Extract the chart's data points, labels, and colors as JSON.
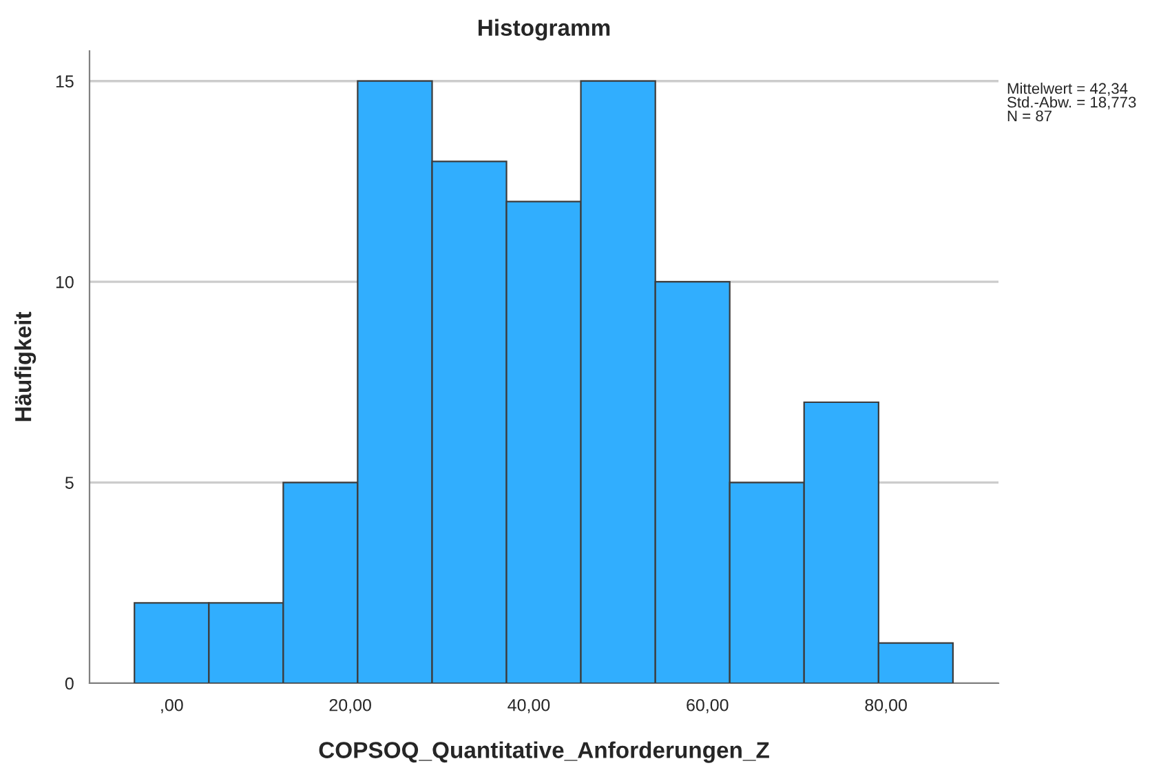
{
  "chart_data": {
    "type": "histogram",
    "title": "Histogramm",
    "xlabel": "COPSOQ_Quantitative_Anforderungen_Z",
    "ylabel": "Häufigkeit",
    "bins": [
      -4.17,
      4.17,
      12.5,
      20.83,
      29.17,
      37.5,
      45.83,
      54.17,
      62.5,
      70.83,
      79.17,
      87.5
    ],
    "values": [
      2,
      2,
      5,
      15,
      13,
      12,
      15,
      10,
      5,
      7,
      1
    ],
    "color": "#31aefe",
    "xlim": [
      -9.2,
      92.6
    ],
    "xticks": [
      {
        "value": 0,
        "label": ",00"
      },
      {
        "value": 20,
        "label": "20,00"
      },
      {
        "value": 40,
        "label": "40,00"
      },
      {
        "value": 60,
        "label": "60,00"
      },
      {
        "value": 80,
        "label": "80,00"
      }
    ],
    "ylim": [
      0,
      15.75
    ],
    "yticks": [
      0,
      5,
      10,
      15
    ],
    "grid": "y",
    "annotations": [
      "Mittelwert = 42,34\nStd.-Abw. = 18,773\nN = 87"
    ]
  }
}
